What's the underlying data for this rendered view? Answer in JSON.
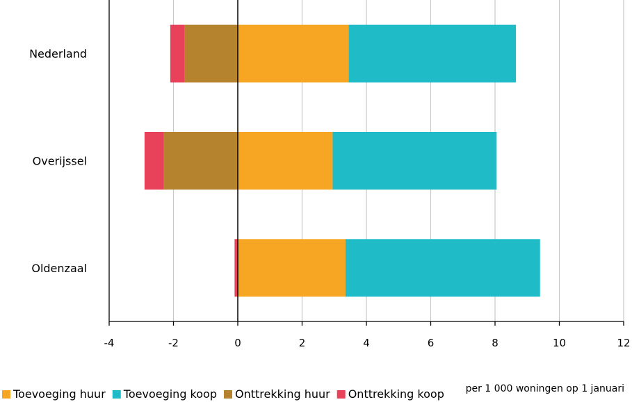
{
  "chart_data": {
    "type": "bar",
    "orientation": "horizontal",
    "stacked": true,
    "categories": [
      "Nederland",
      "Overijssel",
      "Oldenzaal"
    ],
    "series": [
      {
        "name": "Toevoeging huur",
        "color": "#F6A623",
        "values": [
          3.45,
          2.95,
          3.35
        ]
      },
      {
        "name": "Toevoeging koop",
        "color": "#1FBCC8",
        "values": [
          5.2,
          5.1,
          6.05
        ]
      },
      {
        "name": "Onttrekking huur",
        "color": "#B5832D",
        "values": [
          -1.65,
          -2.3,
          0
        ]
      },
      {
        "name": "Onttrekking koop",
        "color": "#E8415A",
        "values": [
          -0.45,
          -0.6,
          -0.1
        ]
      }
    ],
    "xlim": [
      -4,
      12
    ],
    "xticks": [
      "-4",
      "-2",
      "0",
      "2",
      "4",
      "6",
      "8",
      "10",
      "12"
    ],
    "xlabel": "per 1 000 woningen op 1 januari",
    "grid": "vertical",
    "legend_position": "bottom"
  }
}
